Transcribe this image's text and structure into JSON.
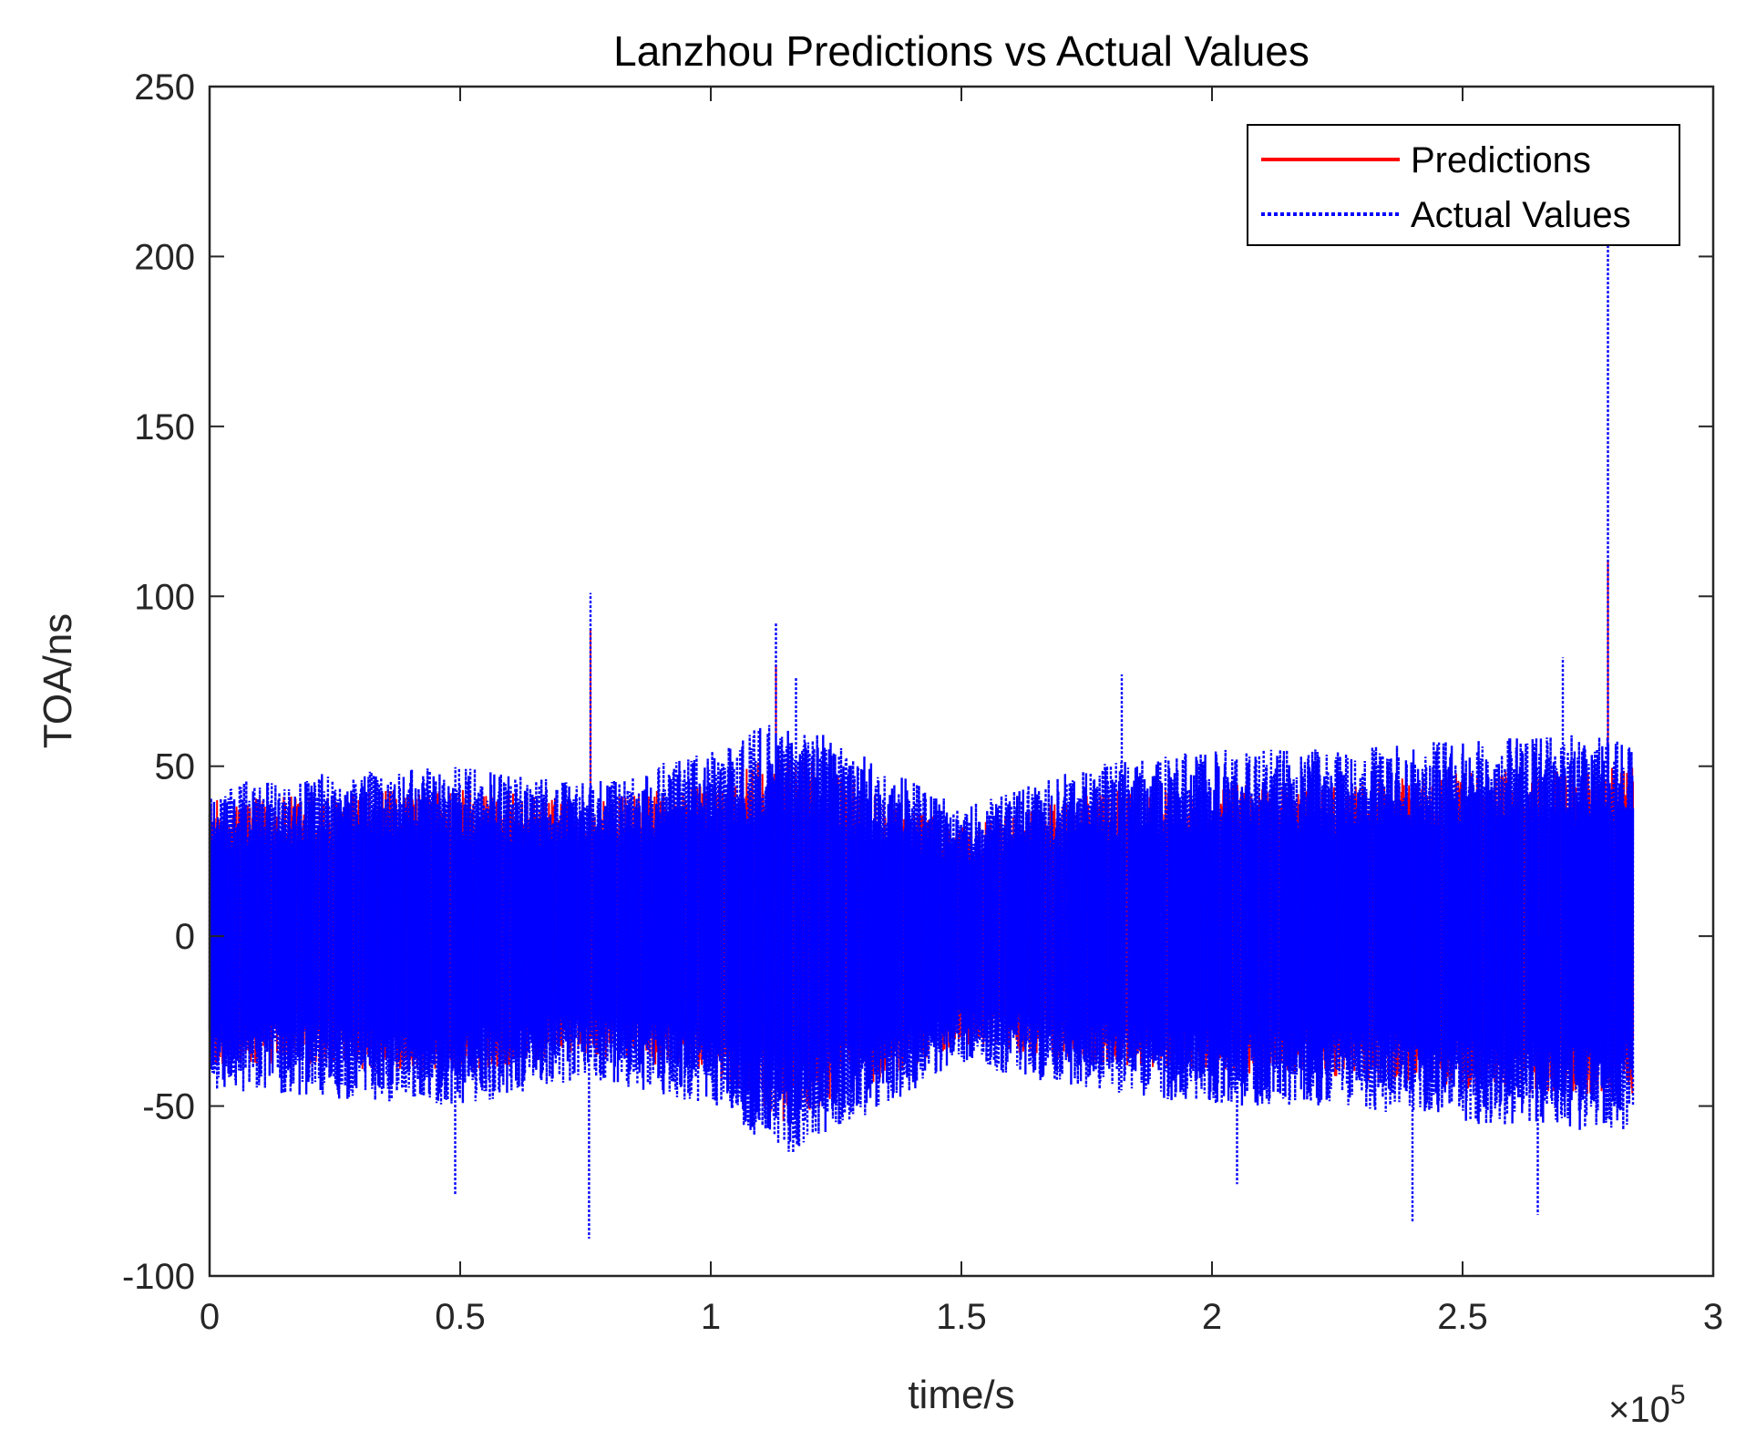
{
  "chart_data": {
    "type": "line",
    "title": "Lanzhou Predictions vs Actual Values",
    "xlabel": "time/s",
    "ylabel": "TOA/ns",
    "x_multiplier_base": "×10",
    "x_multiplier_exp": "5",
    "xlim": [
      0,
      3
    ],
    "ylim": [
      -100,
      250
    ],
    "x_ticks": [
      0,
      0.5,
      1,
      1.5,
      2,
      2.5,
      3
    ],
    "x_tick_labels": [
      "0",
      "0.5",
      "1",
      "1.5",
      "2",
      "2.5",
      "3"
    ],
    "y_ticks": [
      -100,
      -50,
      0,
      50,
      100,
      150,
      200,
      250
    ],
    "y_tick_labels": [
      "-100",
      "-50",
      "0",
      "50",
      "100",
      "150",
      "200",
      "250"
    ],
    "grid": false,
    "legend_position": "top-right",
    "series": [
      {
        "name": "Predictions",
        "color": "#ff0000",
        "line_style": "solid",
        "x_range": [
          0,
          2.84
        ],
        "envelope": [
          {
            "x": 0.0,
            "lo": -38,
            "hi": 40
          },
          {
            "x": 0.25,
            "lo": -40,
            "hi": 42
          },
          {
            "x": 0.5,
            "lo": -40,
            "hi": 44
          },
          {
            "x": 0.75,
            "lo": -35,
            "hi": 40
          },
          {
            "x": 1.0,
            "lo": -40,
            "hi": 45
          },
          {
            "x": 1.15,
            "lo": -55,
            "hi": 55
          },
          {
            "x": 1.5,
            "lo": -32,
            "hi": 32
          },
          {
            "x": 1.75,
            "lo": -38,
            "hi": 42
          },
          {
            "x": 2.0,
            "lo": -40,
            "hi": 45
          },
          {
            "x": 2.25,
            "lo": -42,
            "hi": 45
          },
          {
            "x": 2.5,
            "lo": -45,
            "hi": 48
          },
          {
            "x": 2.84,
            "lo": -48,
            "hi": 50
          }
        ],
        "peaks": [
          {
            "x": 0.76,
            "y": 90
          },
          {
            "x": 1.13,
            "y": 80
          },
          {
            "x": 2.79,
            "y": 110
          }
        ]
      },
      {
        "name": "Actual Values",
        "color": "#0000ff",
        "line_style": "dotted",
        "x_range": [
          0,
          2.84
        ],
        "envelope": [
          {
            "x": 0.0,
            "lo": -45,
            "hi": 45
          },
          {
            "x": 0.25,
            "lo": -48,
            "hi": 48
          },
          {
            "x": 0.5,
            "lo": -50,
            "hi": 50
          },
          {
            "x": 0.75,
            "lo": -42,
            "hi": 45
          },
          {
            "x": 1.0,
            "lo": -50,
            "hi": 55
          },
          {
            "x": 1.15,
            "lo": -65,
            "hi": 65
          },
          {
            "x": 1.5,
            "lo": -38,
            "hi": 38
          },
          {
            "x": 1.75,
            "lo": -45,
            "hi": 50
          },
          {
            "x": 2.0,
            "lo": -50,
            "hi": 55
          },
          {
            "x": 2.25,
            "lo": -50,
            "hi": 55
          },
          {
            "x": 2.5,
            "lo": -55,
            "hi": 58
          },
          {
            "x": 2.84,
            "lo": -58,
            "hi": 60
          }
        ],
        "peaks": [
          {
            "x": 0.76,
            "y": 101
          },
          {
            "x": 0.757,
            "y": -89
          },
          {
            "x": 1.13,
            "y": 92
          },
          {
            "x": 1.17,
            "y": 76
          },
          {
            "x": 1.82,
            "y": 77
          },
          {
            "x": 2.4,
            "y": -84
          },
          {
            "x": 2.7,
            "y": 82
          },
          {
            "x": 2.79,
            "y": 205
          },
          {
            "x": 2.65,
            "y": -82
          },
          {
            "x": 0.49,
            "y": -76
          },
          {
            "x": 2.05,
            "y": -73
          }
        ]
      }
    ]
  }
}
